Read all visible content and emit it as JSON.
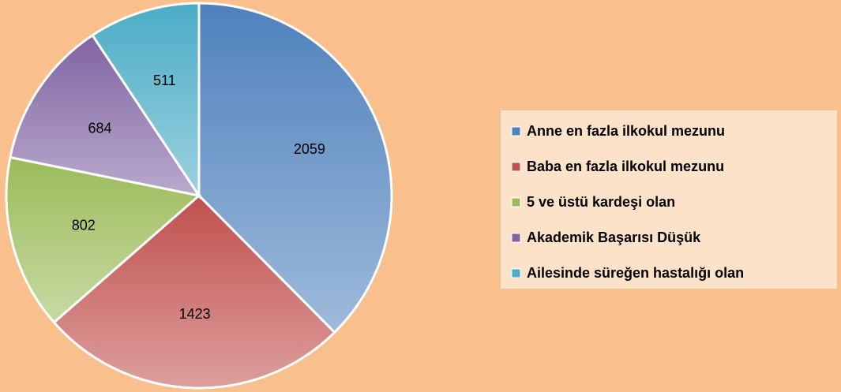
{
  "chart_data": {
    "type": "pie",
    "categories": [
      "Anne en fazla ilkokul mezunu",
      "Baba en fazla ilkokul mezunu",
      "5 ve üstü kardeşi olan",
      "Akademik Başarısı Düşük",
      "Ailesinde süreğen hastalığı olan"
    ],
    "values": [
      2059,
      1423,
      802,
      684,
      511
    ],
    "colors": [
      "#4f81bd",
      "#c0504d",
      "#9bbb59",
      "#8064a2",
      "#4bacc6"
    ],
    "legend": "right"
  }
}
